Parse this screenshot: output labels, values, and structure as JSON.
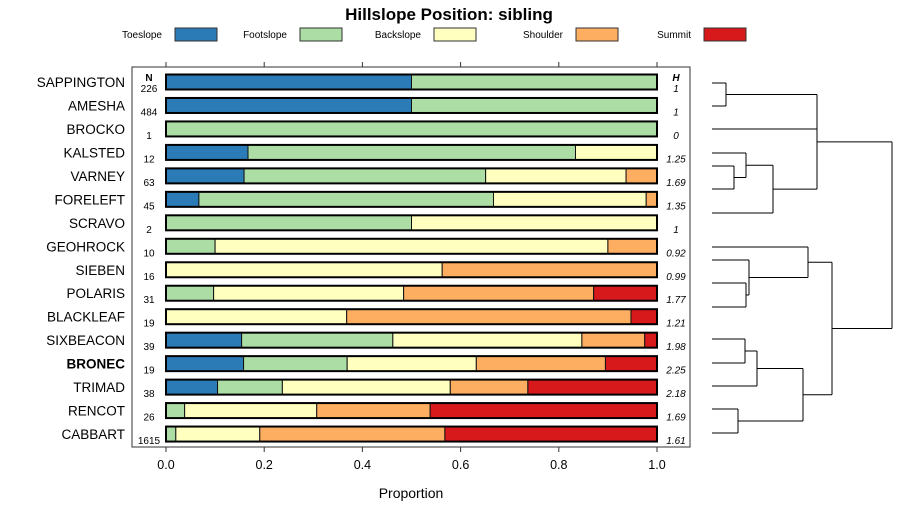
{
  "chart_data": {
    "type": "bar",
    "stacked": true,
    "orientation": "horizontal",
    "title": "Hillslope Position: sibling",
    "xlabel": "Proportion",
    "xlim": [
      0,
      1
    ],
    "xticks": [
      "0.0",
      "0.2",
      "0.4",
      "0.6",
      "0.8",
      "1.0"
    ],
    "n_header": "N",
    "h_header": "H",
    "legend_placement": "top",
    "series": [
      {
        "name": "Toeslope",
        "color": "#2b7bb7"
      },
      {
        "name": "Footslope",
        "color": "#abdda4"
      },
      {
        "name": "Backslope",
        "color": "#ffffbf"
      },
      {
        "name": "Shoulder",
        "color": "#fdae61"
      },
      {
        "name": "Summit",
        "color": "#d7191c"
      }
    ],
    "rows": [
      {
        "label": "SAPPINGTON",
        "n": "226",
        "h": "1",
        "values": [
          0.5,
          0.5,
          0,
          0,
          0
        ]
      },
      {
        "label": "AMESHA",
        "n": "484",
        "h": "1",
        "values": [
          0.5,
          0.5,
          0,
          0,
          0
        ]
      },
      {
        "label": "BROCKO",
        "n": "1",
        "h": "0",
        "values": [
          0,
          1,
          0,
          0,
          0
        ]
      },
      {
        "label": "KALSTED",
        "n": "12",
        "h": "1.25",
        "values": [
          0.167,
          0.667,
          0.167,
          0,
          0
        ]
      },
      {
        "label": "VARNEY",
        "n": "63",
        "h": "1.69",
        "values": [
          0.159,
          0.492,
          0.286,
          0.063,
          0
        ]
      },
      {
        "label": "FORELEFT",
        "n": "45",
        "h": "1.35",
        "values": [
          0.067,
          0.6,
          0.311,
          0.022,
          0
        ]
      },
      {
        "label": "SCRAVO",
        "n": "2",
        "h": "1",
        "values": [
          0,
          0.5,
          0.5,
          0,
          0
        ]
      },
      {
        "label": "GEOHROCK",
        "n": "10",
        "h": "0.92",
        "values": [
          0,
          0.1,
          0.8,
          0.1,
          0
        ]
      },
      {
        "label": "SIEBEN",
        "n": "16",
        "h": "0.99",
        "values": [
          0,
          0,
          0.5625,
          0.4375,
          0
        ]
      },
      {
        "label": "POLARIS",
        "n": "31",
        "h": "1.77",
        "values": [
          0,
          0.097,
          0.387,
          0.387,
          0.129
        ]
      },
      {
        "label": "BLACKLEAF",
        "n": "19",
        "h": "1.21",
        "values": [
          0,
          0,
          0.368,
          0.579,
          0.053
        ]
      },
      {
        "label": "SIXBEACON",
        "n": "39",
        "h": "1.98",
        "values": [
          0.154,
          0.308,
          0.385,
          0.128,
          0.026
        ]
      },
      {
        "label": "BRONEC",
        "n": "19",
        "h": "2.25",
        "values": [
          0.158,
          0.211,
          0.263,
          0.263,
          0.105
        ],
        "bold": true
      },
      {
        "label": "TRIMAD",
        "n": "38",
        "h": "2.18",
        "values": [
          0.105,
          0.132,
          0.342,
          0.158,
          0.263
        ]
      },
      {
        "label": "RENCOT",
        "n": "26",
        "h": "1.69",
        "values": [
          0,
          0.038,
          0.269,
          0.231,
          0.462
        ]
      },
      {
        "label": "CABBART",
        "n": "1615",
        "h": "1.61",
        "values": [
          0,
          0.02,
          0.171,
          0.377,
          0.432
        ]
      }
    ]
  }
}
